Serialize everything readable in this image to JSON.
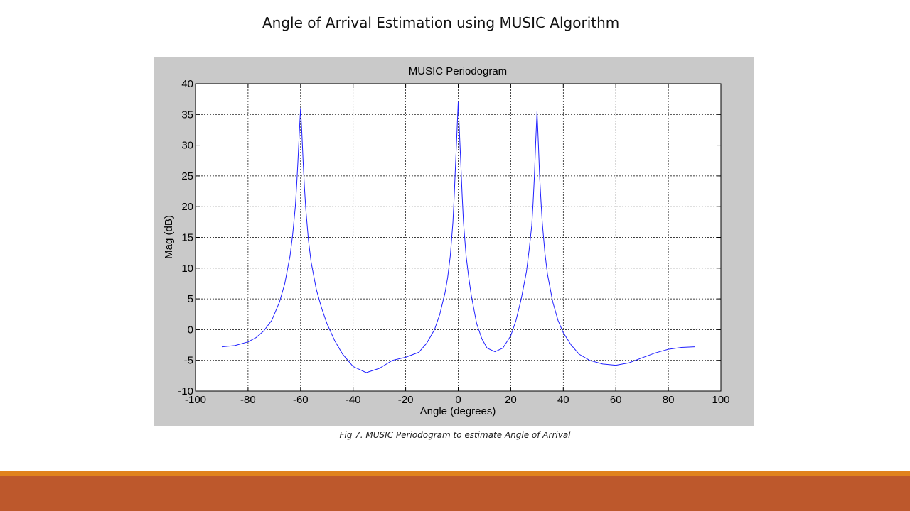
{
  "slide": {
    "title": "Angle of Arrival Estimation using MUSIC Algorithm",
    "caption": "Fig 7. MUSIC Periodogram to estimate Angle of Arrival"
  },
  "colors": {
    "panel_background": "#c9c9c9",
    "plot_background": "#ffffff",
    "line": "#2020ff",
    "footer_stripe": "#e0821d",
    "footer_bar": "#bd582c"
  },
  "chart_data": {
    "type": "line",
    "title": "MUSIC Periodogram",
    "xlabel": "Angle (degrees)",
    "ylabel": "Mag (dB)",
    "xlim": [
      -100,
      100
    ],
    "ylim": [
      -10,
      40
    ],
    "xticks": [
      -100,
      -80,
      -60,
      -40,
      -20,
      0,
      20,
      40,
      60,
      80,
      100
    ],
    "yticks": [
      -10,
      -5,
      0,
      5,
      10,
      15,
      20,
      25,
      30,
      35,
      40
    ],
    "grid": true,
    "series": [
      {
        "x": [
          -90,
          -85,
          -80,
          -77,
          -74,
          -71,
          -68,
          -66,
          -64,
          -63,
          -62,
          -61.5,
          -61,
          -60.5,
          -60,
          -59.5,
          -59,
          -58.5,
          -58,
          -57,
          -56,
          -54,
          -52,
          -50,
          -47,
          -44,
          -40,
          -35,
          -30,
          -25,
          -20,
          -15,
          -12,
          -9,
          -7,
          -5,
          -4,
          -3,
          -2,
          -1.5,
          -1,
          -0.5,
          0,
          0.5,
          1,
          1.5,
          2,
          3,
          4,
          5,
          7,
          9,
          11,
          14,
          17,
          20,
          22,
          24,
          26,
          27,
          28,
          28.5,
          29,
          29.5,
          30,
          30.5,
          31,
          31.5,
          32,
          33,
          34,
          36,
          38,
          40,
          43,
          46,
          50,
          55,
          60,
          65,
          70,
          75,
          80,
          85,
          90
        ],
        "y": [
          -2.8,
          -2.6,
          -2.0,
          -1.3,
          -0.2,
          1.5,
          4.5,
          7.5,
          12.0,
          15.5,
          20.0,
          23.5,
          27.5,
          32.0,
          36.0,
          32.0,
          27.0,
          23.0,
          19.5,
          14.5,
          11.0,
          6.5,
          3.5,
          1.0,
          -1.8,
          -4.0,
          -6.0,
          -7.0,
          -6.3,
          -5.0,
          -4.5,
          -3.7,
          -2.2,
          0.0,
          2.5,
          6.0,
          8.5,
          12.0,
          17.5,
          22.0,
          27.0,
          32.0,
          37.0,
          32.0,
          27.0,
          22.0,
          17.5,
          12.0,
          8.5,
          5.5,
          1.0,
          -1.5,
          -3.0,
          -3.6,
          -3.0,
          -1.0,
          1.5,
          5.0,
          9.5,
          13.0,
          17.0,
          20.5,
          25.0,
          30.5,
          35.5,
          30.5,
          25.0,
          21.0,
          17.5,
          12.5,
          9.0,
          4.5,
          1.5,
          -0.5,
          -2.5,
          -4.0,
          -5.0,
          -5.6,
          -5.8,
          -5.4,
          -4.6,
          -3.8,
          -3.2,
          -2.9,
          -2.8
        ]
      }
    ]
  }
}
